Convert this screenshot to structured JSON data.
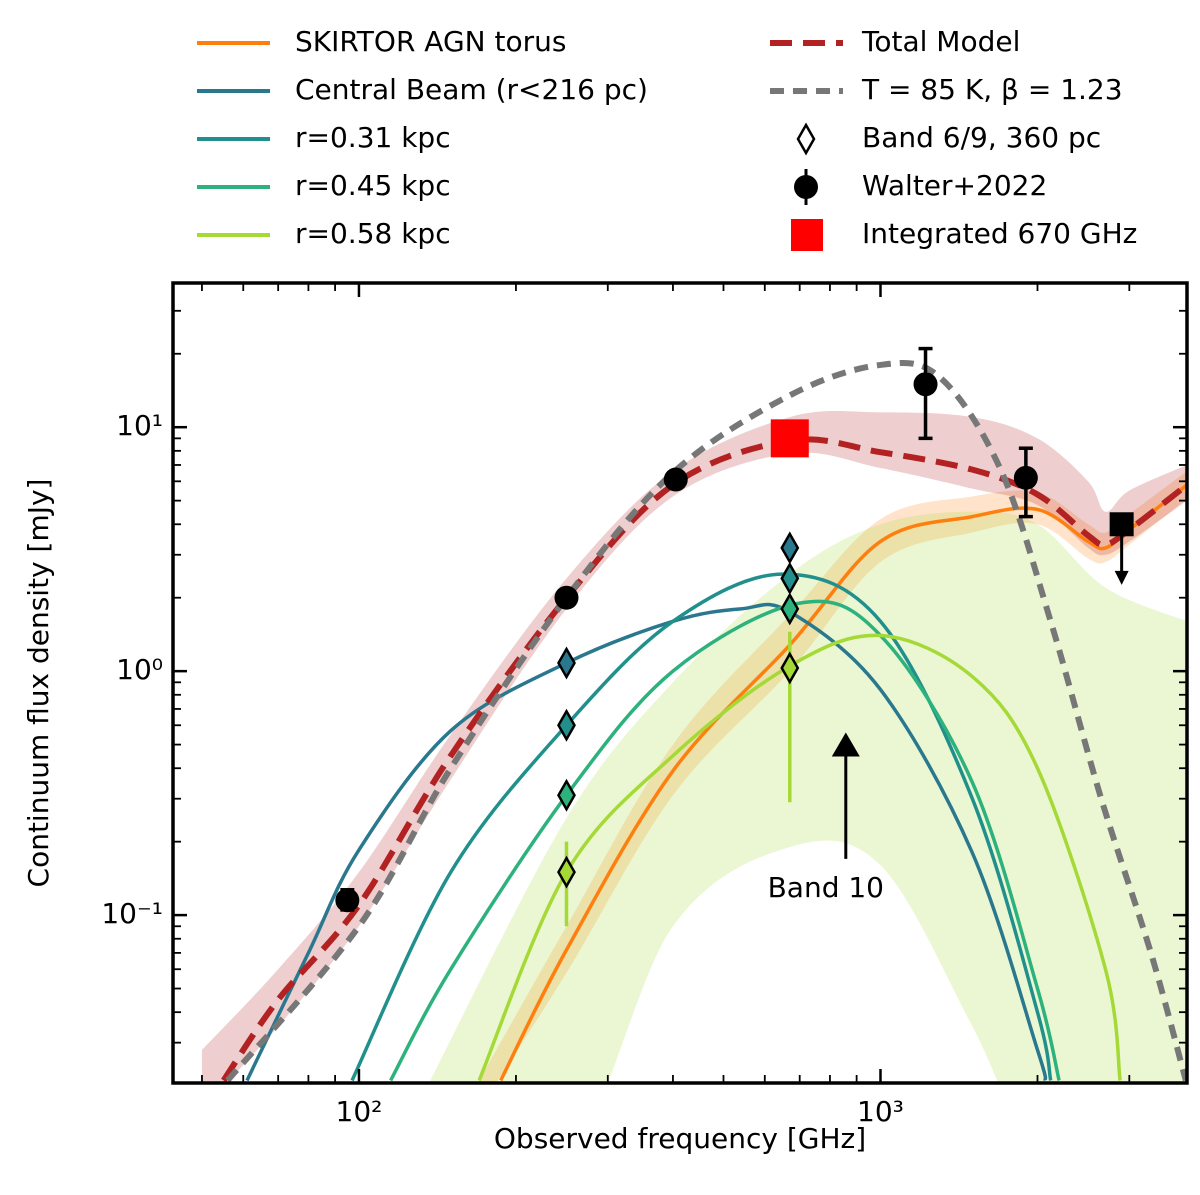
{
  "chart_data": {
    "type": "line",
    "xlabel": "Observed frequency [GHz]",
    "ylabel": "Continuum flux density [mJy]",
    "xscale": "log",
    "yscale": "log",
    "xlim": [
      44,
      3870
    ],
    "ylim": [
      0.0205,
      39
    ],
    "xticks": [
      {
        "value": 100,
        "label": "10²"
      },
      {
        "value": 1000,
        "label": "10³"
      }
    ],
    "yticks": [
      {
        "value": 0.1,
        "label": "10⁻¹"
      },
      {
        "value": 1,
        "label": "10⁰"
      },
      {
        "value": 10,
        "label": "10¹"
      }
    ],
    "xminorticks": [
      50,
      60,
      70,
      80,
      90,
      200,
      300,
      400,
      500,
      600,
      700,
      800,
      900,
      2000,
      3000
    ],
    "yminorticks": [
      0.03,
      0.04,
      0.05,
      0.06,
      0.07,
      0.08,
      0.09,
      0.2,
      0.3,
      0.4,
      0.5,
      0.6,
      0.7,
      0.8,
      0.9,
      2,
      3,
      4,
      5,
      6,
      7,
      8,
      9,
      20,
      30
    ],
    "legend": "top-outside",
    "series": [
      {
        "name": "SKIRTOR AGN torus",
        "type": "line",
        "style": "solid",
        "color": "#ff7f0e",
        "x": [
          187,
          250,
          400,
          670,
          1000,
          1500,
          2000,
          2500,
          2700,
          3000,
          3870
        ],
        "values": [
          0.021,
          0.072,
          0.39,
          1.28,
          3.4,
          4.3,
          4.6,
          3.4,
          3.2,
          3.8,
          5.8
        ],
        "band": {
          "x": [
            170,
            250,
            400,
            670,
            1000,
            1500,
            2000,
            2500,
            2700,
            3000,
            3870
          ],
          "upper": [
            0.021,
            0.09,
            0.5,
            1.7,
            4.2,
            5.2,
            5.4,
            4.0,
            3.7,
            4.4,
            6.6
          ],
          "lower": [
            0.016,
            0.058,
            0.31,
            1.0,
            2.8,
            3.7,
            4.0,
            2.9,
            2.8,
            3.3,
            5.1
          ]
        }
      },
      {
        "name": "Central Beam (r<216 pc)",
        "type": "line",
        "style": "solid",
        "color": "#2a788e",
        "x": [
          61,
          80,
          100,
          150,
          250,
          400,
          540,
          670,
          1000,
          1500,
          2000,
          2070
        ],
        "values": [
          0.021,
          0.07,
          0.185,
          0.57,
          1.08,
          1.6,
          1.8,
          1.75,
          0.84,
          0.18,
          0.028,
          0.021
        ]
      },
      {
        "name": "r=0.31 kpc",
        "type": "line",
        "style": "solid",
        "color": "#21908d",
        "x": [
          97,
          150,
          250,
          400,
          650,
          1000,
          1500,
          2000,
          2120
        ],
        "values": [
          0.021,
          0.15,
          0.6,
          1.6,
          2.5,
          1.6,
          0.3,
          0.04,
          0.021
        ]
      },
      {
        "name": "r=0.45 kpc",
        "type": "line",
        "style": "solid",
        "color": "#2db27d",
        "x": [
          115,
          150,
          250,
          400,
          700,
          1000,
          1500,
          2000,
          2200
        ],
        "values": [
          0.021,
          0.06,
          0.31,
          1.0,
          1.9,
          1.4,
          0.35,
          0.05,
          0.021
        ]
      },
      {
        "name": "r=0.58 kpc",
        "type": "line",
        "style": "solid",
        "color": "#a5d935",
        "x": [
          170,
          250,
          400,
          670,
          1000,
          1500,
          2000,
          2700,
          2880
        ],
        "values": [
          0.021,
          0.15,
          0.45,
          1.05,
          1.4,
          0.95,
          0.4,
          0.06,
          0.021
        ],
        "band": {
          "x": [
            137,
            250,
            400,
            670,
            1000,
            1500,
            2000,
            2700,
            3870
          ],
          "upper": [
            0.021,
            0.25,
            0.9,
            2.5,
            4,
            4.5,
            4,
            2.2,
            1.6
          ],
          "lower": [
            0.01,
            0.01,
            0.09,
            0.19,
            0.16,
            0.035,
            0.01,
            0.01,
            0.01
          ]
        }
      },
      {
        "name": "Total Model",
        "type": "line",
        "style": "dashed",
        "color": "#b22222",
        "x": [
          55,
          70,
          100,
          150,
          250,
          400,
          670,
          1000,
          1500,
          2000,
          2500,
          2700,
          3000,
          3870
        ],
        "values": [
          0.021,
          0.045,
          0.11,
          0.45,
          2.0,
          5.8,
          8.8,
          7.9,
          6.7,
          5.3,
          3.6,
          3.3,
          3.8,
          5.8
        ],
        "band": {
          "x": [
            50,
            70,
            100,
            150,
            250,
            400,
            670,
            1000,
            1500,
            2000,
            2500,
            2700,
            3000,
            3870
          ],
          "upper": [
            0.028,
            0.06,
            0.15,
            0.55,
            2.4,
            6.6,
            11,
            11.5,
            11,
            9,
            6,
            4.5,
            5.5,
            7
          ],
          "lower": [
            0.016,
            0.035,
            0.09,
            0.36,
            1.8,
            5.2,
            7.8,
            6.8,
            5.6,
            4.8,
            3.2,
            3.0,
            3.4,
            5.0
          ]
        }
      },
      {
        "name": "T = 85 K, β = 1.23",
        "type": "line",
        "style": "dashed",
        "color": "#777777",
        "x": [
          56,
          100,
          150,
          250,
          400,
          670,
          1000,
          1300,
          1700,
          2120,
          2650,
          3300,
          3850
        ],
        "values": [
          0.021,
          0.09,
          0.4,
          2.0,
          6.5,
          13.5,
          18,
          16,
          6.7,
          1.6,
          0.3,
          0.07,
          0.021
        ]
      },
      {
        "name": "Band 6/9, 360 pc",
        "type": "scatter",
        "marker": "diamond",
        "color": "#ffffff",
        "x": [
          250,
          250,
          250,
          250,
          670,
          670,
          670,
          670
        ],
        "values": [
          1.08,
          0.6,
          0.31,
          0.15,
          3.2,
          2.4,
          1.8,
          1.03
        ],
        "colors": [
          "#2a788e",
          "#21908d",
          "#2db27d",
          "#a5d935",
          "#2a788e",
          "#21908d",
          "#2db27d",
          "#a5d935"
        ],
        "err_minus": [
          null,
          null,
          null,
          0.06,
          null,
          null,
          null,
          0.74
        ],
        "err_plus": [
          null,
          null,
          null,
          0.05,
          null,
          null,
          null,
          0.42
        ]
      },
      {
        "name": "Walter+2022",
        "type": "scatter",
        "marker": "circle",
        "color": "#000000",
        "x": [
          95,
          250,
          405,
          1220,
          1900
        ],
        "values": [
          0.115,
          2.0,
          6.1,
          15,
          6.2
        ],
        "err_minus": [
          0.01,
          0,
          0,
          6,
          1.9
        ],
        "err_plus": [
          0.012,
          0,
          0,
          6,
          2
        ]
      },
      {
        "name": "Integrated 670 GHz",
        "type": "scatter",
        "marker": "square",
        "color": "#ff0000",
        "x": [
          670
        ],
        "values": [
          9.0
        ]
      }
    ],
    "upper_limit": {
      "x": 2900,
      "value": 4.0,
      "arrow_to": 2.3,
      "color": "#000000"
    },
    "annotation": {
      "text": "Band 10",
      "x": 858,
      "arrow_from": 0.17,
      "arrow_to": 0.55
    }
  }
}
